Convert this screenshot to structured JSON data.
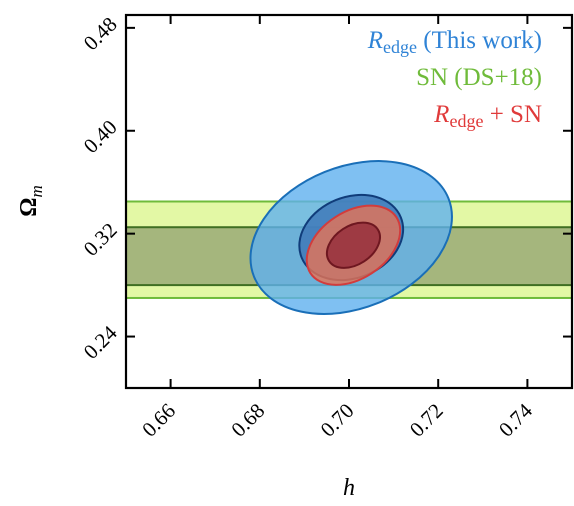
{
  "chart_data": {
    "type": "contour",
    "xlabel": "h",
    "ylabel_main": "Ω",
    "ylabel_sub": "m",
    "xlim": [
      0.65,
      0.75
    ],
    "ylim": [
      0.2,
      0.49
    ],
    "xticks": [
      0.66,
      0.68,
      0.7,
      0.72,
      0.74
    ],
    "xtick_labels": [
      "0.66",
      "0.68",
      "0.70",
      "0.72",
      "0.74"
    ],
    "yticks": [
      0.24,
      0.32,
      0.4,
      0.48
    ],
    "ytick_labels": [
      "0.24",
      "0.32",
      "0.40",
      "0.48"
    ],
    "grid": false,
    "legend_position": "top-right",
    "legend": [
      {
        "main": "R",
        "sub": "edge",
        "rest": " (This work)",
        "color": "#2f83d6"
      },
      {
        "main": "SN (DS+18)",
        "sub": "",
        "rest": "",
        "color": "#6fbb3a"
      },
      {
        "main": "R",
        "sub": "edge",
        "rest": " + SN",
        "color": "#e03a3a"
      }
    ],
    "series": [
      {
        "id": "sn",
        "label_ref": 1,
        "shape": "band",
        "fill_outer": "#e2f8a0",
        "stroke_outer": "#6fbb3a",
        "fill_inner": "#a1b27a",
        "stroke_inner": "#3f6f22",
        "outer_band": [
          0.27,
          0.345
        ],
        "inner_band": [
          0.28,
          0.325
        ]
      },
      {
        "id": "redge",
        "label_ref": 0,
        "shape": "ellipse",
        "fill_outer": "#5fb0ef",
        "stroke_outer": "#1a6fb8",
        "fill_inner": "#3f79b8",
        "stroke_inner": "#103c7a",
        "center": [
          0.7005,
          0.317
        ],
        "outer": {
          "rx": 0.0235,
          "ry": 0.11,
          "angle_deg": -22
        },
        "inner": {
          "rx": 0.012,
          "ry": 0.063,
          "angle_deg": -22
        }
      },
      {
        "id": "combined",
        "label_ref": 2,
        "shape": "ellipse",
        "fill_outer": "#e77355",
        "stroke_outer": "#d23c3c",
        "fill_inner": "#97303c",
        "stroke_inner": "#6e1720",
        "center": [
          0.701,
          0.311
        ],
        "outer": {
          "rx": 0.0115,
          "ry": 0.052,
          "angle_deg": -33
        },
        "inner": {
          "rx": 0.0065,
          "ry": 0.03,
          "angle_deg": -33
        }
      }
    ]
  }
}
